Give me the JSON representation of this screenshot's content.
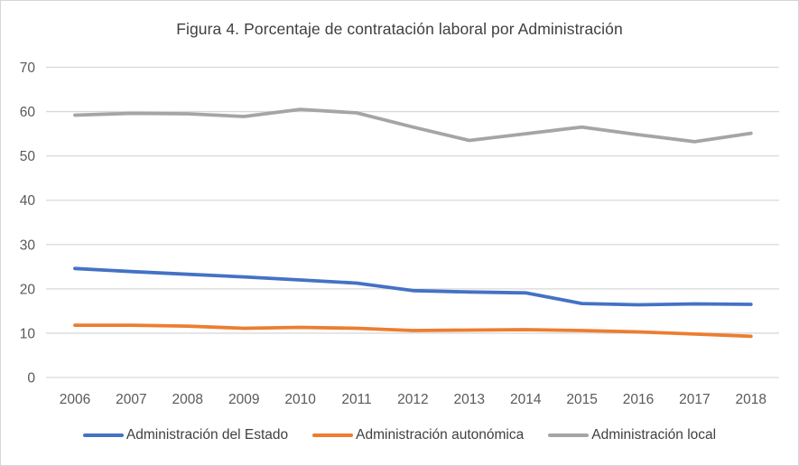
{
  "title": "Figura 4. Porcentaje de contratación laboral por Administración",
  "chart_data": {
    "type": "line",
    "x": [
      "2006",
      "2007",
      "2008",
      "2009",
      "2010",
      "2011",
      "2012",
      "2013",
      "2014",
      "2015",
      "2016",
      "2017",
      "2018"
    ],
    "series": [
      {
        "name": "Administración del Estado",
        "color": "#4472C4",
        "values": [
          24.6,
          23.9,
          23.3,
          22.7,
          22.0,
          21.3,
          19.6,
          19.3,
          19.1,
          16.7,
          16.4,
          16.6,
          16.5
        ]
      },
      {
        "name": "Administración autonómica",
        "color": "#ED7D31",
        "values": [
          11.8,
          11.8,
          11.6,
          11.1,
          11.3,
          11.1,
          10.6,
          10.7,
          10.8,
          10.6,
          10.3,
          9.8,
          9.3
        ]
      },
      {
        "name": "Administración local",
        "color": "#A5A5A5",
        "values": [
          59.2,
          59.6,
          59.5,
          58.9,
          60.5,
          59.7,
          56.5,
          53.5,
          55.0,
          56.5,
          54.8,
          53.2,
          55.1
        ]
      }
    ],
    "title": "Figura 4. Porcentaje de contratación laboral por Administración",
    "xlabel": "",
    "ylabel": "",
    "ylim": [
      0,
      70
    ],
    "yticks": [
      0,
      10,
      20,
      30,
      40,
      50,
      60,
      70
    ],
    "grid": true,
    "legend_position": "bottom",
    "gridline_color": "#D9D9D9",
    "axis_text_color": "#595959",
    "title_color": "#404040"
  }
}
